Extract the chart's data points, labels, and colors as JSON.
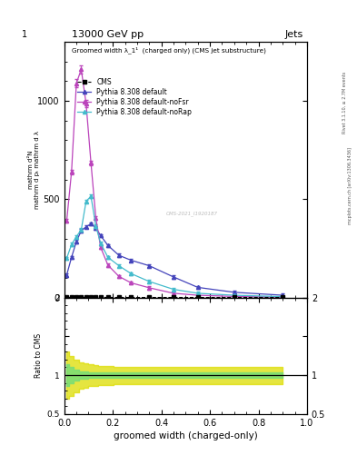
{
  "title_top": "13000 GeV pp",
  "title_right": "Jets",
  "plot_title": "Groomed width λ_1¹  (charged only) (CMS jet substructure)",
  "xlabel": "groomed width (charged-only)",
  "ylabel_main_lines": [
    "mathrm d²N",
    "mathrm d pₜ mathrm d λ"
  ],
  "ylabel_ratio": "Ratio to CMS",
  "watermark": "CMS-2021_I1920187",
  "rivet_label": "Rivet 3.1.10, ≥ 2.7M events",
  "arxiv_label": "mcplots.cern.ch [arXiv:1306.3436]",
  "x_bins": [
    0.0,
    0.02,
    0.04,
    0.06,
    0.08,
    0.1,
    0.12,
    0.14,
    0.16,
    0.2,
    0.25,
    0.3,
    0.4,
    0.5,
    0.6,
    0.8,
    1.0
  ],
  "cms_y": [
    5,
    5,
    5,
    5,
    5,
    5,
    5,
    5,
    5,
    5,
    5,
    5,
    5,
    5,
    5,
    5
  ],
  "default_y": [
    115,
    205,
    285,
    340,
    360,
    375,
    355,
    315,
    265,
    215,
    190,
    162,
    105,
    52,
    27,
    12
  ],
  "noFsr_y": [
    390,
    640,
    1090,
    1160,
    985,
    685,
    405,
    255,
    165,
    108,
    75,
    50,
    22,
    12,
    6,
    2
  ],
  "noRap_y": [
    200,
    270,
    310,
    345,
    490,
    515,
    365,
    275,
    205,
    162,
    122,
    82,
    42,
    22,
    12,
    5
  ],
  "default_color": "#4444bb",
  "noFsr_color": "#bb44bb",
  "noRap_color": "#44bbcc",
  "cms_color": "#000000",
  "ylim_main": [
    0,
    1300
  ],
  "yticks_main": [
    0,
    500,
    1000
  ],
  "ylim_ratio": [
    0.5,
    2.0
  ],
  "background_color": "#ffffff"
}
